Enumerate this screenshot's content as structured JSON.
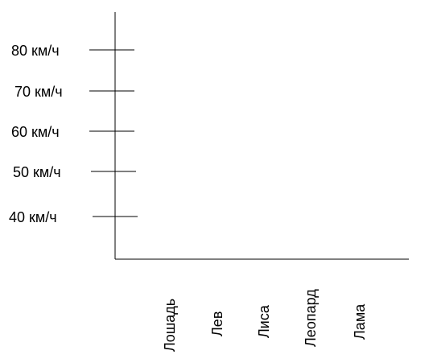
{
  "chart_data": {
    "type": "bar",
    "title": "",
    "xlabel": "",
    "ylabel": "",
    "categories": [
      "Лошадь",
      "Лев",
      "Лиса",
      "Леопард",
      "Лама"
    ],
    "y_ticks": [
      {
        "value": 80,
        "label": "80 км/ч"
      },
      {
        "value": 70,
        "label": "70 км/ч"
      },
      {
        "value": 60,
        "label": "60 км/ч"
      },
      {
        "value": 50,
        "label": "50 км/ч"
      },
      {
        "value": 40,
        "label": "40 км/ч"
      }
    ],
    "series": [],
    "grid": false,
    "legend": "none"
  }
}
